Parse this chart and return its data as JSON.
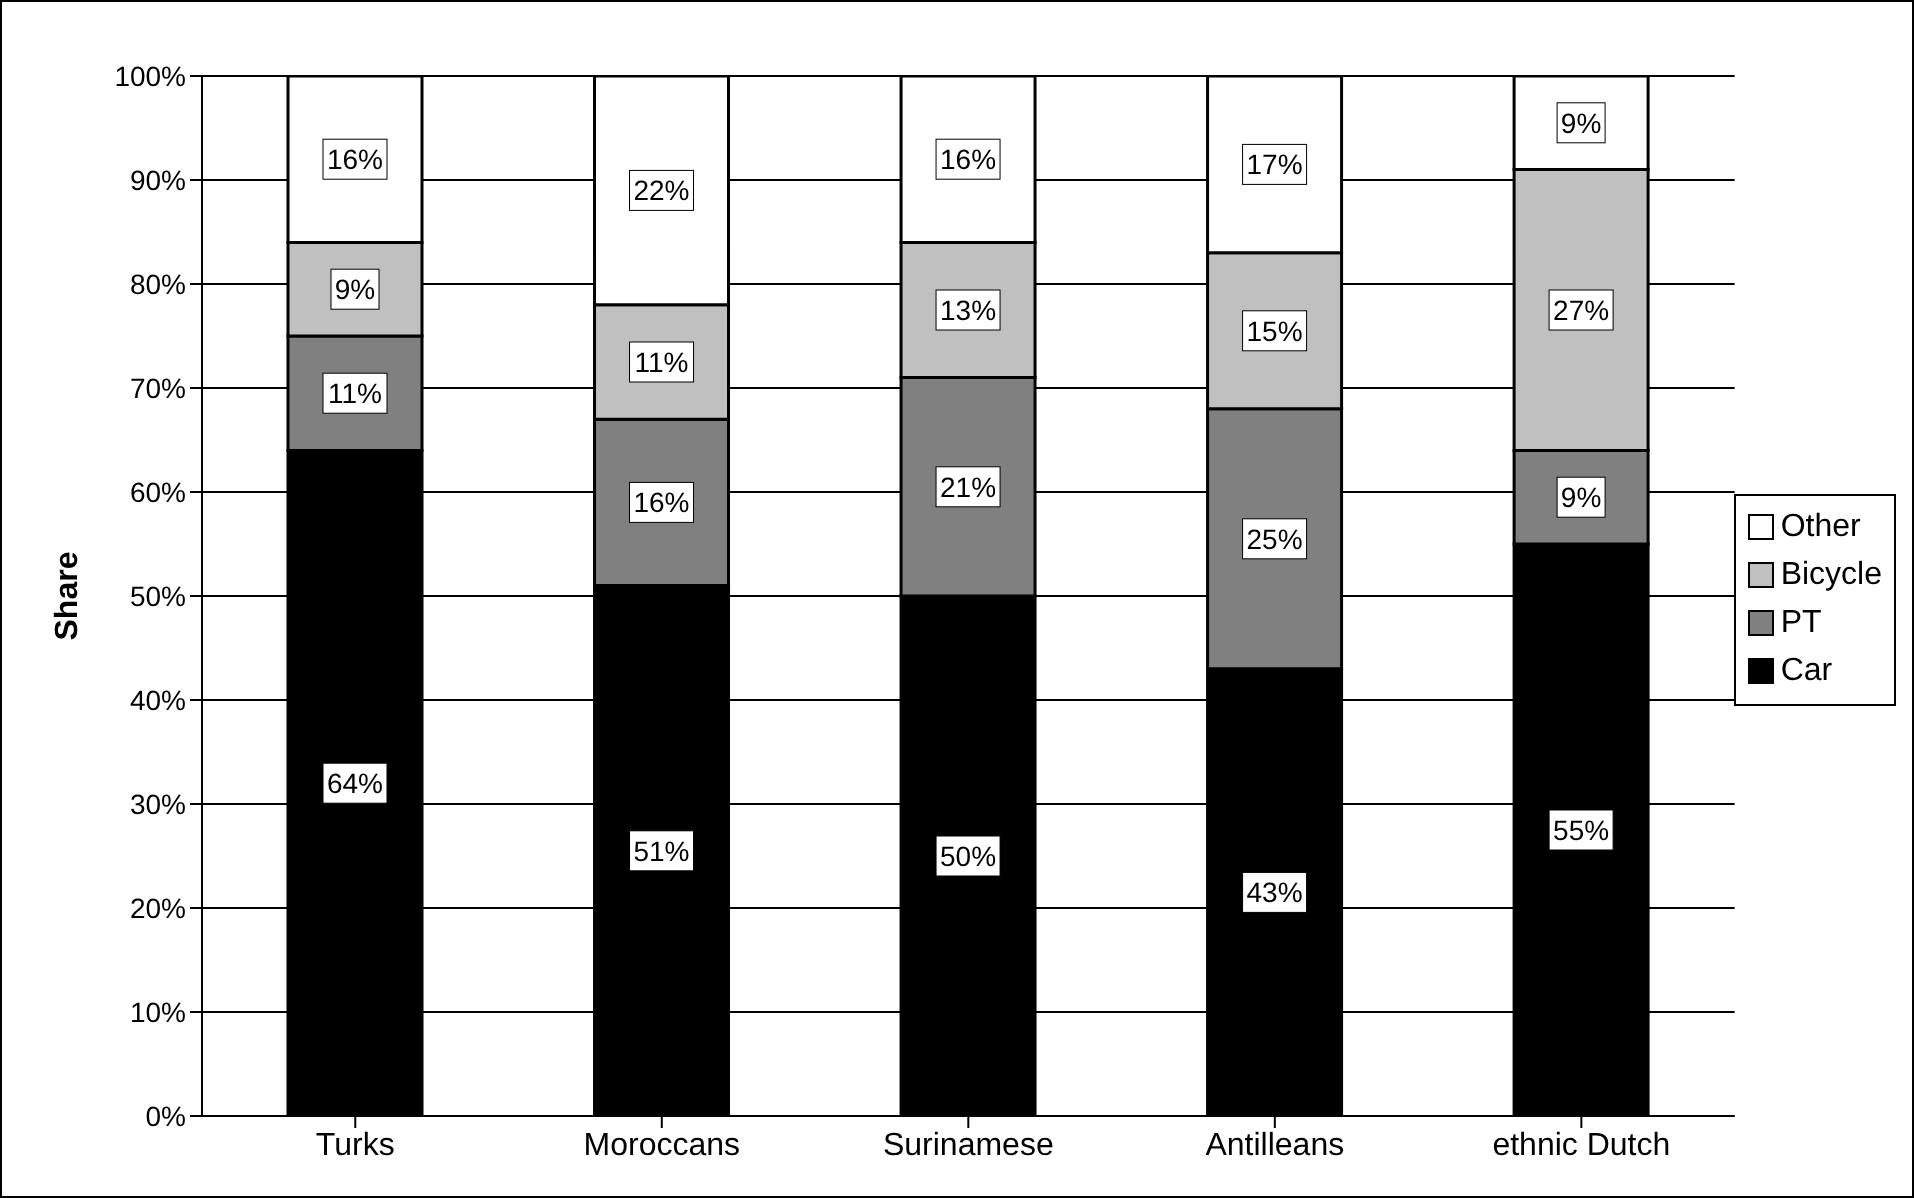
{
  "chart_data": {
    "type": "bar",
    "stacked": true,
    "ylabel": "Share",
    "categories": [
      "Turks",
      "Moroccans",
      "Surinamese",
      "Antilleans",
      "ethnic Dutch"
    ],
    "series": [
      {
        "name": "Car",
        "color": "#000000",
        "values": [
          64,
          51,
          50,
          43,
          55
        ],
        "value_labels": [
          "64%",
          "51%",
          "50%",
          "43%",
          "55%"
        ]
      },
      {
        "name": "PT",
        "color": "#808080",
        "values": [
          11,
          16,
          21,
          25,
          9
        ],
        "value_labels": [
          "11%",
          "16%",
          "21%",
          "25%",
          "9%"
        ]
      },
      {
        "name": "Bicycle",
        "color": "#c0c0c0",
        "values": [
          9,
          11,
          13,
          15,
          27
        ],
        "value_labels": [
          "9%",
          "11%",
          "13%",
          "15%",
          "27%"
        ]
      },
      {
        "name": "Other",
        "color": "#ffffff",
        "values": [
          16,
          22,
          16,
          17,
          9
        ],
        "value_labels": [
          "16%",
          "22%",
          "16%",
          "17%",
          "9%"
        ]
      }
    ],
    "ylim": [
      0,
      100
    ],
    "yticks": [
      {
        "value": 0,
        "label": "0%"
      },
      {
        "value": 10,
        "label": "10%"
      },
      {
        "value": 20,
        "label": "20%"
      },
      {
        "value": 30,
        "label": "30%"
      },
      {
        "value": 40,
        "label": "40%"
      },
      {
        "value": 50,
        "label": "50%"
      },
      {
        "value": 60,
        "label": "60%"
      },
      {
        "value": 70,
        "label": "70%"
      },
      {
        "value": 80,
        "label": "80%"
      },
      {
        "value": 90,
        "label": "90%"
      },
      {
        "value": 100,
        "label": "100%"
      }
    ],
    "grid": "y",
    "legend": "right"
  }
}
